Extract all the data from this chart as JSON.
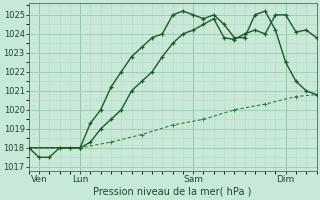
{
  "background_color": "#c8e8d8",
  "grid_color_major": "#a0c8b0",
  "grid_color_minor": "#b8d8c4",
  "line_color1": "#1a5c28",
  "line_color2": "#1a5c28",
  "line_color3": "#2e7d3e",
  "xlabel": "Pression niveau de la mer( hPa )",
  "ylim": [
    1016.8,
    1025.6
  ],
  "xlim": [
    0,
    14
  ],
  "yticks": [
    1017,
    1018,
    1019,
    1020,
    1021,
    1022,
    1023,
    1024,
    1025
  ],
  "day_labels": [
    "Ven",
    "Lun",
    "Sam",
    "Dim"
  ],
  "day_positions": [
    0.5,
    2.5,
    8.0,
    12.5
  ],
  "vline_positions": [
    0.5,
    2.5,
    8.0,
    12.5
  ],
  "series1_x": [
    0,
    0.5,
    1.0,
    1.5,
    2.0,
    2.5,
    3.0,
    3.5,
    4.0,
    4.5,
    5.0,
    5.5,
    6.0,
    6.5,
    7.0,
    7.5,
    8.0,
    8.5,
    9.0,
    9.5,
    10.0,
    10.5,
    11.0,
    11.5,
    12.0,
    12.5,
    13.0,
    13.5,
    14.0
  ],
  "series1_y": [
    1018.0,
    1017.5,
    1017.5,
    1018.0,
    1018.0,
    1018.0,
    1019.3,
    1020.0,
    1021.2,
    1022.0,
    1022.8,
    1023.3,
    1023.8,
    1024.0,
    1025.0,
    1025.2,
    1025.0,
    1024.8,
    1025.0,
    1024.5,
    1023.8,
    1023.8,
    1025.0,
    1025.2,
    1024.2,
    1022.5,
    1021.5,
    1021.0,
    1020.8
  ],
  "series2_x": [
    0.0,
    2.5,
    3.0,
    3.5,
    4.0,
    4.5,
    5.0,
    5.5,
    6.0,
    6.5,
    7.0,
    7.5,
    8.0,
    8.5,
    9.0,
    9.5,
    10.0,
    10.5,
    11.0,
    11.5,
    12.0,
    12.5,
    13.0,
    13.5,
    14.0
  ],
  "series2_y": [
    1018.0,
    1018.0,
    1018.3,
    1019.0,
    1019.5,
    1020.0,
    1021.0,
    1021.5,
    1022.0,
    1022.8,
    1023.5,
    1024.0,
    1024.2,
    1024.5,
    1024.8,
    1023.8,
    1023.7,
    1024.0,
    1024.2,
    1024.0,
    1025.0,
    1025.0,
    1024.1,
    1024.2,
    1023.8
  ],
  "series3_x": [
    0.0,
    2.5,
    4.0,
    5.5,
    7.0,
    8.5,
    10.0,
    11.5,
    13.0,
    14.0
  ],
  "series3_y": [
    1018.0,
    1018.0,
    1018.3,
    1018.7,
    1019.2,
    1019.5,
    1020.0,
    1020.3,
    1020.7,
    1020.8
  ]
}
